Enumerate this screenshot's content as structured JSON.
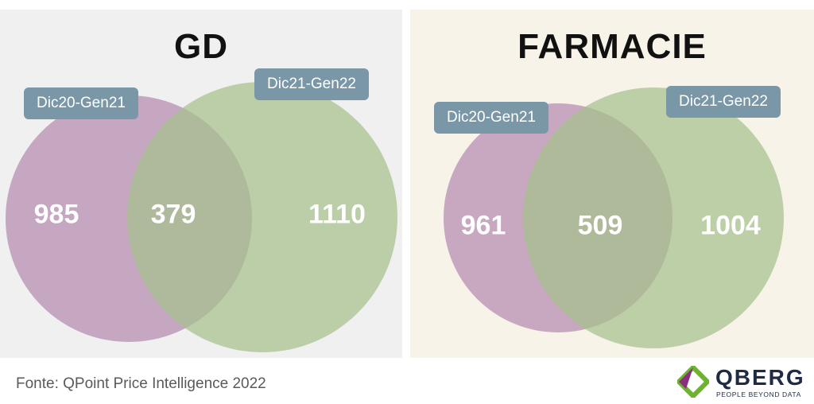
{
  "panels": [
    {
      "title": "GD",
      "set_a": {
        "label": "Dic20-Gen21",
        "only": "985"
      },
      "set_b": {
        "label": "Dic21-Gen22",
        "only": "1110"
      },
      "intersection": "379"
    },
    {
      "title": "FARMACIE",
      "set_a": {
        "label": "Dic20-Gen21",
        "only": "961"
      },
      "set_b": {
        "label": "Dic21-Gen22",
        "only": "1004"
      },
      "intersection": "509"
    }
  ],
  "source": "Fonte: QPoint Price Intelligence 2022",
  "logo": {
    "name": "QBERG",
    "tagline": "PEOPLE BEYOND DATA"
  },
  "colors": {
    "set_a": "#b48bb0",
    "set_b": "#a6c08c",
    "label_bg": "#7a97a8",
    "panel_gd_bg": "#f0f0f0",
    "panel_farmacie_bg": "#f7f3e8"
  }
}
